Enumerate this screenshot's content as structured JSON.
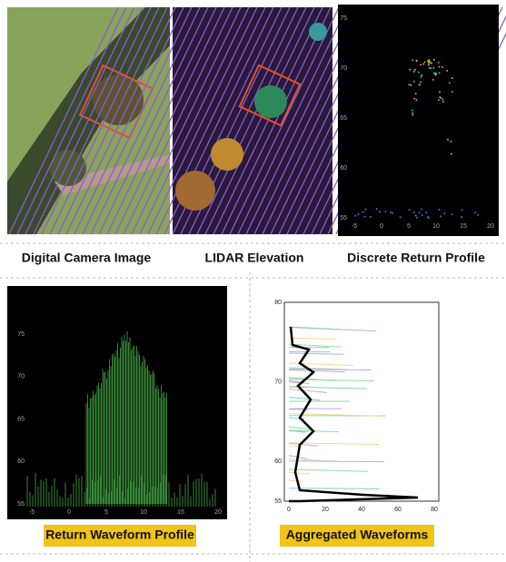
{
  "panels": [
    {
      "caption": "Digital Camera Image"
    },
    {
      "caption": "LIDAR Elevation"
    },
    {
      "caption": "Discrete Return Profile",
      "yticks": [
        75,
        70,
        65,
        60,
        55
      ],
      "xticks": [
        -5,
        0,
        5,
        10,
        15,
        20
      ]
    },
    {
      "caption": "Return Waveform Profile",
      "yticks": [
        75,
        70,
        65,
        60,
        55
      ],
      "xticks": [
        -5,
        0,
        5,
        10,
        15,
        20
      ]
    },
    {
      "caption": "Aggregated Waveforms",
      "yticks": [
        80,
        70,
        60,
        55
      ],
      "xticks": [
        0,
        20,
        40,
        60,
        80
      ]
    }
  ]
}
